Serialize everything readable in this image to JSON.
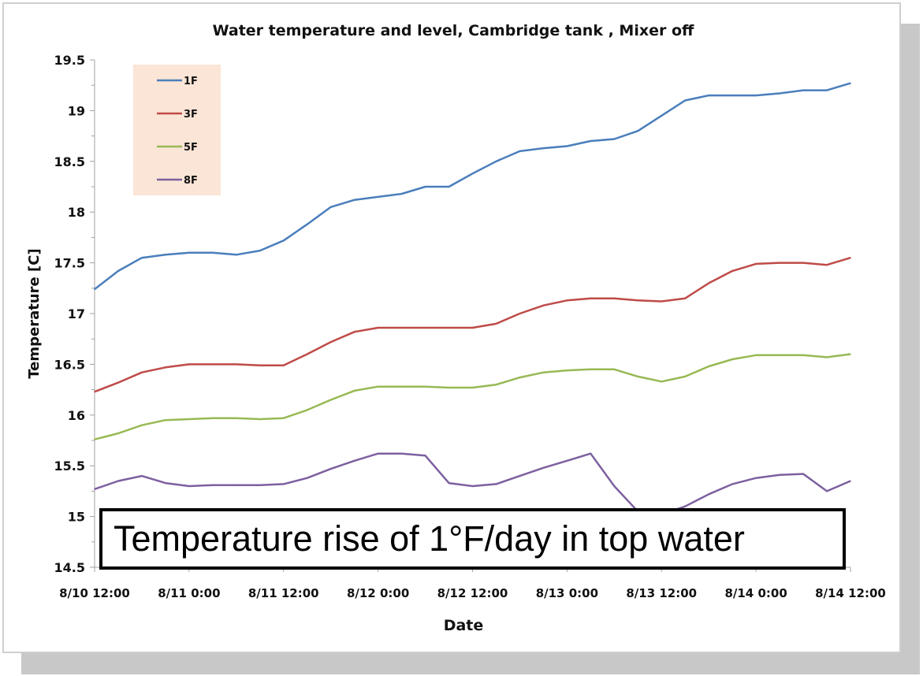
{
  "chart_data": {
    "type": "line",
    "title": "Water temperature and level, Cambridge tank , Mixer off",
    "xlabel": "Date",
    "ylabel": "Temperature [C]",
    "ylim": [
      14.5,
      19.5
    ],
    "yticks": [
      "14.5",
      "15",
      "15.5",
      "16",
      "16.5",
      "17",
      "17.5",
      "18",
      "18.5",
      "19",
      "19.5"
    ],
    "xticks": [
      "8/10 12:00",
      "8/11 0:00",
      "8/11 12:00",
      "8/12 0:00",
      "8/12 12:00",
      "8/13 0:00",
      "8/13 12:00",
      "8/14 0:00",
      "8/14 12:00"
    ],
    "xlim": [
      "8/10 12:00",
      "8/14 12:00"
    ],
    "grid": false,
    "legend_position": "top-left",
    "x": [
      "8/10 12:00",
      "8/10 15:00",
      "8/10 18:00",
      "8/10 21:00",
      "8/11 0:00",
      "8/11 3:00",
      "8/11 6:00",
      "8/11 9:00",
      "8/11 12:00",
      "8/11 15:00",
      "8/11 18:00",
      "8/11 21:00",
      "8/12 0:00",
      "8/12 3:00",
      "8/12 6:00",
      "8/12 9:00",
      "8/12 12:00",
      "8/12 15:00",
      "8/12 18:00",
      "8/12 21:00",
      "8/13 0:00",
      "8/13 3:00",
      "8/13 6:00",
      "8/13 9:00",
      "8/13 12:00",
      "8/13 15:00",
      "8/13 18:00",
      "8/13 21:00",
      "8/14 0:00",
      "8/14 3:00",
      "8/14 6:00",
      "8/14 9:00",
      "8/14 12:00"
    ],
    "series": [
      {
        "name": "1F",
        "color": "#4a7ebb",
        "values": [
          17.24,
          17.42,
          17.55,
          17.58,
          17.6,
          17.6,
          17.58,
          17.62,
          17.72,
          17.88,
          18.05,
          18.12,
          18.15,
          18.18,
          18.25,
          18.25,
          18.38,
          18.5,
          18.6,
          18.63,
          18.65,
          18.7,
          18.72,
          18.8,
          18.95,
          19.1,
          19.15,
          19.15,
          19.15,
          19.17,
          19.2,
          19.2,
          19.27
        ]
      },
      {
        "name": "3F",
        "color": "#be4b48",
        "values": [
          16.23,
          16.32,
          16.42,
          16.47,
          16.5,
          16.5,
          16.5,
          16.49,
          16.49,
          16.6,
          16.72,
          16.82,
          16.86,
          16.86,
          16.86,
          16.86,
          16.86,
          16.9,
          17.0,
          17.08,
          17.13,
          17.15,
          17.15,
          17.13,
          17.12,
          17.15,
          17.3,
          17.42,
          17.49,
          17.5,
          17.5,
          17.48,
          17.55
        ]
      },
      {
        "name": "5F",
        "color": "#98b954",
        "values": [
          15.76,
          15.82,
          15.9,
          15.95,
          15.96,
          15.97,
          15.97,
          15.96,
          15.97,
          16.05,
          16.15,
          16.24,
          16.28,
          16.28,
          16.28,
          16.27,
          16.27,
          16.3,
          16.37,
          16.42,
          16.44,
          16.45,
          16.45,
          16.38,
          16.33,
          16.38,
          16.48,
          16.55,
          16.59,
          16.59,
          16.59,
          16.57,
          16.6
        ]
      },
      {
        "name": "8F",
        "color": "#7d60a0",
        "values": [
          15.27,
          15.35,
          15.4,
          15.33,
          15.3,
          15.31,
          15.31,
          15.31,
          15.32,
          15.38,
          15.47,
          15.55,
          15.62,
          15.62,
          15.6,
          15.33,
          15.3,
          15.32,
          15.4,
          15.48,
          15.55,
          15.62,
          15.3,
          15.05,
          15.02,
          15.1,
          15.22,
          15.32,
          15.38,
          15.41,
          15.42,
          15.25,
          15.35
        ]
      }
    ]
  },
  "annotation": "Temperature rise of 1°F/day in top water",
  "colors": {
    "legend_background": "#fbe5d6",
    "frame_shadow": "#c8c8c8",
    "axis": "#a0a0a0"
  }
}
